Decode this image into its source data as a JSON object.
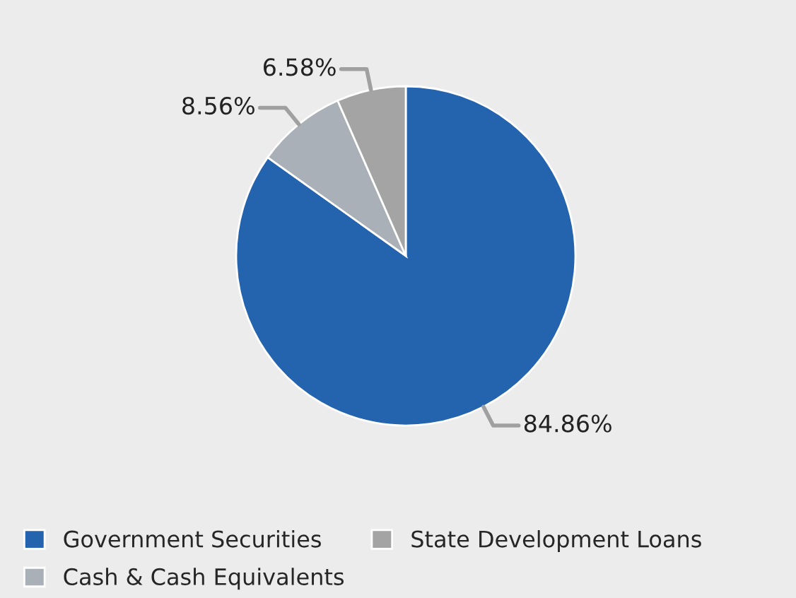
{
  "chart_data": {
    "type": "pie",
    "categories": [
      "Government Securities",
      "Cash & Cash Equivalents",
      "State Development Loans"
    ],
    "values": [
      84.86,
      8.56,
      6.58
    ],
    "colors": [
      "#2463ae",
      "#aab0b7",
      "#a4a4a4"
    ],
    "value_labels": [
      "84.86%",
      "8.56%",
      "6.58%"
    ],
    "legend": "bottom left"
  }
}
